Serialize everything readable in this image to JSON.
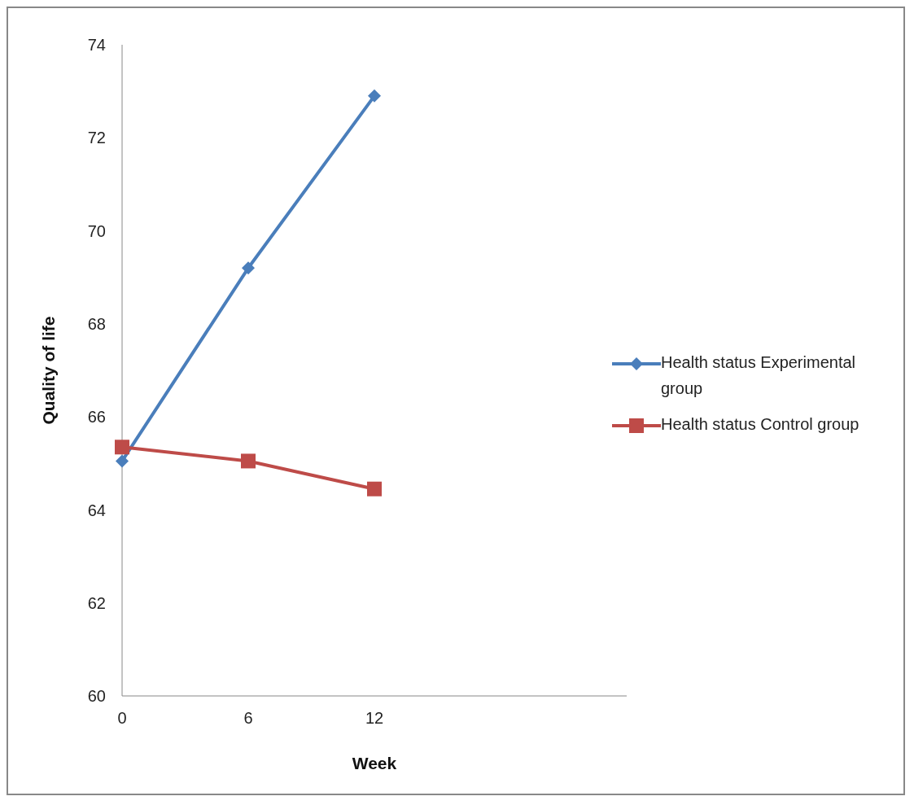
{
  "chart_data": {
    "type": "line",
    "xlabel": "Week",
    "ylabel": "Quality of life",
    "categories": [
      "0",
      "6",
      "12",
      null,
      null
    ],
    "series": [
      {
        "name": "Health status Experimental group",
        "color": "#4a7ebb",
        "marker": "diamond",
        "values": [
          65.05,
          69.2,
          72.9,
          null,
          null
        ]
      },
      {
        "name": "Health status Control group",
        "color": "#be4b48",
        "marker": "square",
        "values": [
          65.35,
          65.05,
          64.45,
          null,
          null
        ]
      }
    ],
    "ylim": [
      60,
      74
    ],
    "yticks": [
      60,
      62,
      64,
      66,
      68,
      70,
      72,
      74
    ],
    "grid": false,
    "legend": "right"
  }
}
